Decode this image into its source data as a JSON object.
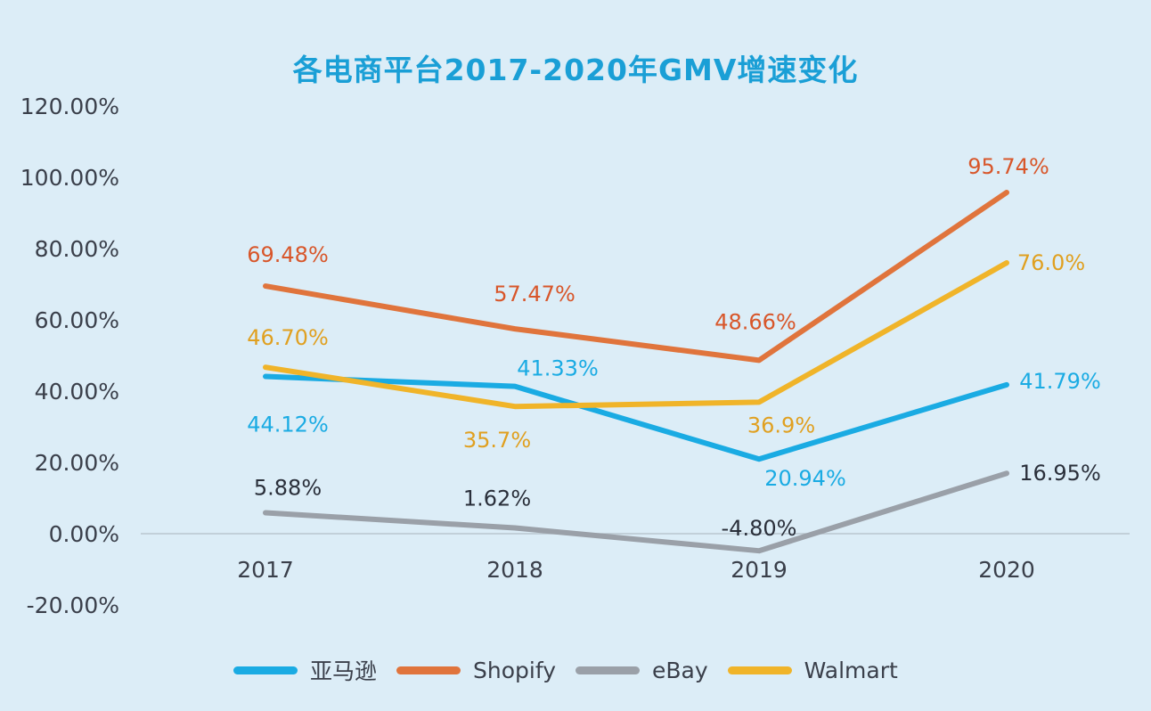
{
  "chart_data": {
    "type": "line",
    "title": "各电商平台2017-2020年GMV增速变化",
    "categories": [
      "2017",
      "2018",
      "2019",
      "2020"
    ],
    "ylim": [
      -20,
      120
    ],
    "yticks": [
      "-20.00%",
      "0.00%",
      "20.00%",
      "40.00%",
      "60.00%",
      "80.00%",
      "100.00%",
      "120.00%"
    ],
    "ytick_values": [
      -20,
      0,
      20,
      40,
      60,
      80,
      100,
      120
    ],
    "grid": false,
    "legend_position": "bottom",
    "series": [
      {
        "name": "亚马逊",
        "color": "#1aabe3",
        "values": [
          44.12,
          41.33,
          20.94,
          41.79
        ],
        "labels": [
          "44.12%",
          "41.33%",
          "20.94%",
          "41.79%"
        ]
      },
      {
        "name": "Shopify",
        "color": "#e0743c",
        "values": [
          69.48,
          57.47,
          48.66,
          95.74
        ],
        "labels": [
          "69.48%",
          "57.47%",
          "48.66%",
          "95.74%"
        ]
      },
      {
        "name": "eBay",
        "color": "#9aa0a8",
        "values": [
          5.88,
          1.62,
          -4.8,
          16.95
        ],
        "labels": [
          "5.88%",
          "1.62%",
          "-4.80%",
          "16.95%"
        ]
      },
      {
        "name": "Walmart",
        "color": "#f0b429",
        "values": [
          46.7,
          35.7,
          36.9,
          76.0
        ],
        "labels": [
          "46.70%",
          "35.7%",
          "36.9%",
          "76.0%"
        ]
      }
    ]
  }
}
